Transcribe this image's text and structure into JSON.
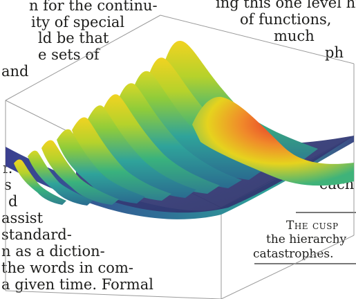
{
  "column_left": {
    "lines": [
      "n for the continu-",
      "ity of special",
      "ld be that",
      "e sets of",
      "and",
      "r.",
      "s",
      "d",
      "assist",
      "standard-",
      "n as a diction-",
      "the words in com-",
      "a given time. Formal"
    ]
  },
  "column_right": {
    "lines": [
      "ing this one level hig",
      "of functions,",
      "much",
      "ph",
      "ec",
      "each"
    ]
  },
  "caption": {
    "title": "The cusp",
    "line2": "the hierarchy",
    "line3": "catastrophes."
  },
  "colors": {
    "text": "#1d1d1b",
    "rule": "#777777",
    "surface_low": "#3b3f8f",
    "surface_mid": "#2fa39a",
    "surface_high": "#e6d31e",
    "surface_peak": "#e8332a"
  }
}
